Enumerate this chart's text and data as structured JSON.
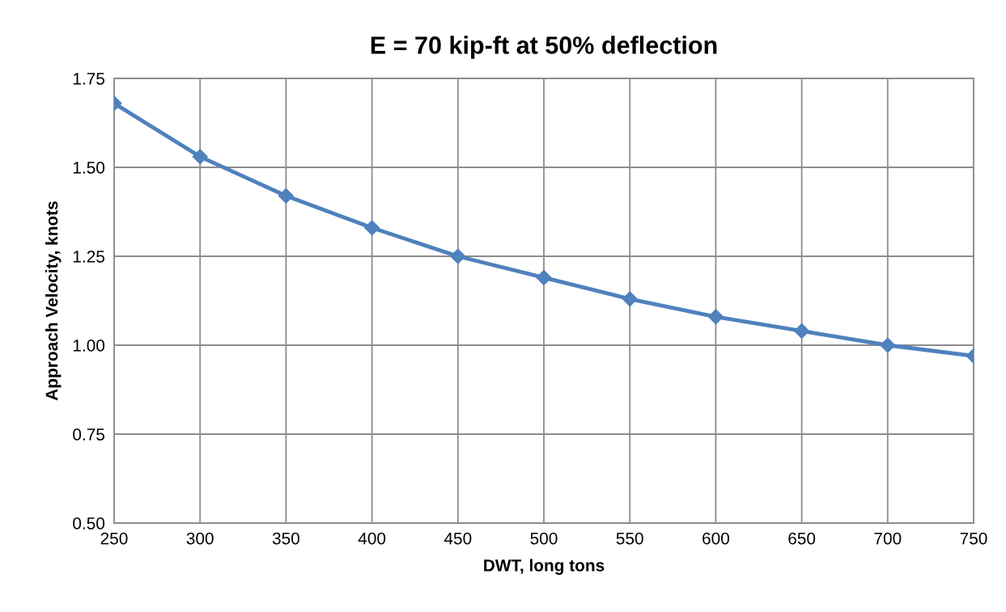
{
  "chart_data": {
    "type": "line",
    "title": "E = 70 kip-ft at 50% deflection",
    "xlabel": "DWT, long tons",
    "ylabel": "Approach Velocity, knots",
    "x": [
      250,
      300,
      350,
      400,
      450,
      500,
      550,
      600,
      650,
      700,
      750
    ],
    "series": [
      {
        "color": "#4f81bd",
        "values": [
          1.68,
          1.53,
          1.42,
          1.33,
          1.25,
          1.19,
          1.13,
          1.08,
          1.04,
          1.0,
          0.97
        ]
      }
    ],
    "xlim": [
      250,
      750
    ],
    "xticks": [
      250,
      300,
      350,
      400,
      450,
      500,
      550,
      600,
      650,
      700,
      750
    ],
    "ylim": [
      0.5,
      1.75
    ],
    "yticks": [
      {
        "value": 0.5,
        "label": "0.50"
      },
      {
        "value": 0.75,
        "label": "0.75"
      },
      {
        "value": 1.0,
        "label": "1.00"
      },
      {
        "value": 1.25,
        "label": "1.25"
      },
      {
        "value": 1.5,
        "label": "1.50"
      },
      {
        "value": 1.75,
        "label": "1.75"
      }
    ],
    "grid": true,
    "marker": "diamond",
    "line_style": "solid"
  }
}
